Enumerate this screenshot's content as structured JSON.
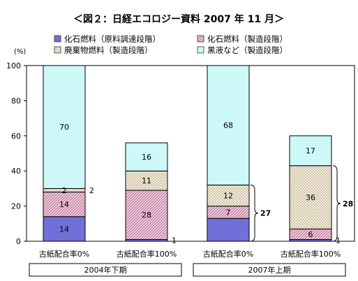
{
  "chart_data": {
    "type": "bar",
    "stacked": true,
    "title": "＜図２：日経エコロジー資料 2007 年 11 月＞",
    "ylabel": "(%)",
    "ylim": [
      0,
      100
    ],
    "yticks": [
      0,
      20,
      40,
      60,
      80,
      100
    ],
    "categories": [
      "古紙配合率0%",
      "古紙配合率100%",
      "古紙配合率0%",
      "古紙配合率100%"
    ],
    "groups": [
      {
        "label": "2004年下期",
        "categories": [
          0,
          1
        ]
      },
      {
        "label": "2007年上期",
        "categories": [
          2,
          3
        ]
      }
    ],
    "series": [
      {
        "name": "化石燃料（原料調達段階）",
        "color": "#7070d8",
        "pattern": "solid",
        "values": [
          14,
          1,
          13,
          1
        ]
      },
      {
        "name": "化石燃料（製造段階）",
        "color": "#d7a3bd",
        "pattern": "hatch",
        "values": [
          14,
          28,
          7,
          6
        ]
      },
      {
        "name": "廃棄物燃料（製造段階）",
        "color": "#e2d8c4",
        "pattern": "dots",
        "values": [
          2,
          11,
          12,
          36
        ]
      },
      {
        "name": "黒液など（製造段階）",
        "color": "#ccf8f8",
        "pattern": "solid",
        "values": [
          70,
          16,
          68,
          17
        ]
      }
    ],
    "data_labels": [
      [
        "14",
        "",
        "",
        ""
      ],
      [
        "14",
        "28",
        "7",
        "6"
      ],
      [
        "2",
        "11",
        "12",
        "36"
      ],
      [
        "70",
        "16",
        "68",
        "17"
      ]
    ],
    "outside_labels": [
      {
        "category": 1,
        "series": 0,
        "text": "1"
      },
      {
        "category": 3,
        "series": 0,
        "text": "1"
      },
      {
        "category": 0,
        "series": 2,
        "text": "2"
      }
    ],
    "brackets": [
      {
        "category": 2,
        "from": 0,
        "to": 32,
        "text": "27"
      },
      {
        "category": 3,
        "from": 0,
        "to": 43,
        "text": "28"
      }
    ],
    "grid": false,
    "legend": "top"
  }
}
